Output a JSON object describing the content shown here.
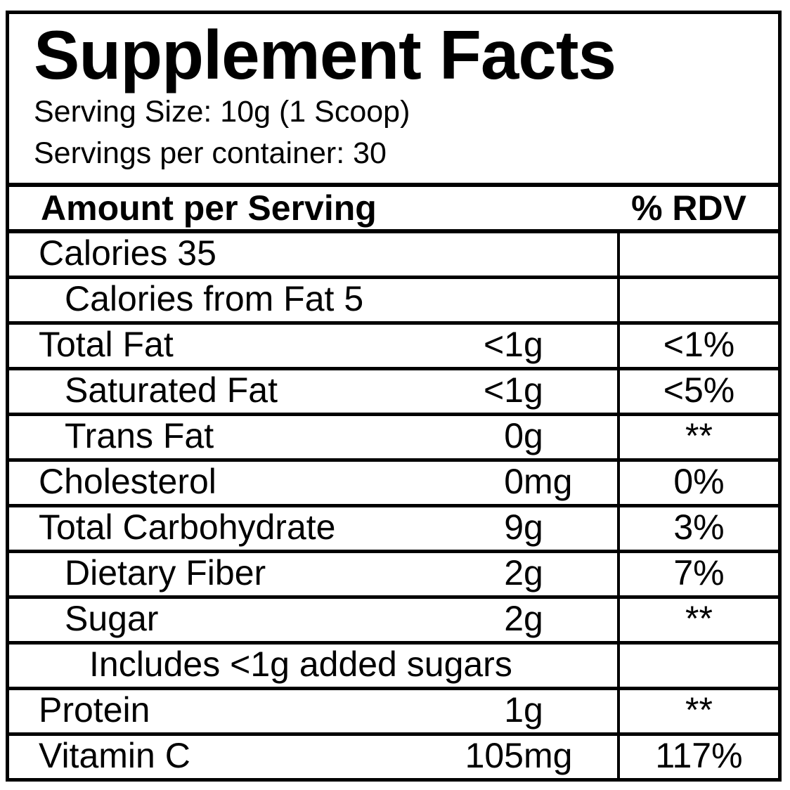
{
  "title": "Supplement Facts",
  "serving_size": "Serving Size: 10g (1 Scoop)",
  "servings_per_container": "Servings per container: 30",
  "header": {
    "amount_label": "Amount per Serving",
    "rdv_label": "% RDV"
  },
  "rows": [
    {
      "name": "Calories 35",
      "indent": 0,
      "amount_num": "",
      "amount_unit": "",
      "rdv": ""
    },
    {
      "name": "Calories from Fat 5",
      "indent": 1,
      "amount_num": "",
      "amount_unit": "",
      "rdv": ""
    },
    {
      "name": "Total Fat",
      "indent": 0,
      "amount_num": "<1",
      "amount_unit": "g",
      "rdv": "<1%"
    },
    {
      "name": "Saturated Fat",
      "indent": 1,
      "amount_num": "<1",
      "amount_unit": "g",
      "rdv": "<5%"
    },
    {
      "name": "Trans Fat",
      "indent": 1,
      "amount_num": "0",
      "amount_unit": "g",
      "rdv": "**"
    },
    {
      "name": "Cholesterol",
      "indent": 0,
      "amount_num": "0",
      "amount_unit": "mg",
      "rdv": "0%"
    },
    {
      "name": "Total Carbohydrate",
      "indent": 0,
      "amount_num": "9",
      "amount_unit": "g",
      "rdv": "3%"
    },
    {
      "name": "Dietary Fiber",
      "indent": 1,
      "amount_num": "2",
      "amount_unit": "g",
      "rdv": "7%"
    },
    {
      "name": "Sugar",
      "indent": 1,
      "amount_num": "2",
      "amount_unit": "g",
      "rdv": "**"
    },
    {
      "name": "Includes <1g added sugars",
      "indent": 2,
      "amount_num": "",
      "amount_unit": "",
      "rdv": ""
    },
    {
      "name": "Protein",
      "indent": 0,
      "amount_num": "1",
      "amount_unit": "g",
      "rdv": "**"
    },
    {
      "name": "Vitamin C",
      "indent": 0,
      "amount_num": "105",
      "amount_unit": "mg",
      "rdv": "117%"
    }
  ],
  "colors": {
    "text": "#000000",
    "background": "#ffffff",
    "border": "#000000"
  }
}
